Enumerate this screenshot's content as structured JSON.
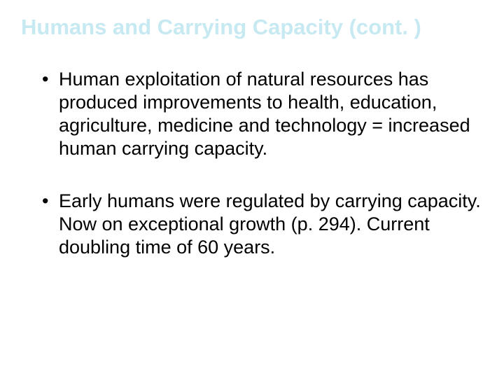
{
  "slide": {
    "title": "Humans and Carrying Capacity (cont. )",
    "title_color": "#c6e9f2",
    "title_fontsize": 31,
    "title_fontweight": "bold",
    "bullets": [
      "Human exploitation of natural resources has produced improvements to health, education, agriculture, medicine and technology = increased human carrying capacity.",
      "Early humans were regulated by carrying capacity. Now on exceptional growth (p. 294). Current doubling time of 60 years."
    ],
    "bullet_color": "#000000",
    "bullet_fontsize": 27,
    "background_color": "#ffffff"
  }
}
